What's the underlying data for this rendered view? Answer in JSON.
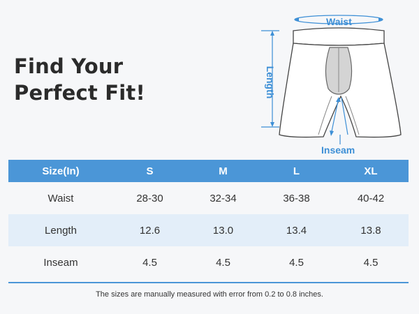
{
  "headline": {
    "line1": "Find Your",
    "line2": "Perfect Fit!"
  },
  "diagram": {
    "waist_label": "Waist",
    "length_label": "Length",
    "inseam_label": "Inseam",
    "accent": "#3d8fd6"
  },
  "table": {
    "headers": [
      "Size(In)",
      "S",
      "M",
      "L",
      "XL"
    ],
    "rows": [
      [
        "Waist",
        "28-30",
        "32-34",
        "36-38",
        "40-42"
      ],
      [
        "Length",
        "12.6",
        "13.0",
        "13.4",
        "13.8"
      ],
      [
        "Inseam",
        "4.5",
        "4.5",
        "4.5",
        "4.5"
      ]
    ],
    "header_color": "#4b96d7",
    "alt_row_color": "#e3eef9"
  },
  "footnote": "The sizes are manually measured with error from 0.2 to 0.8 inches."
}
